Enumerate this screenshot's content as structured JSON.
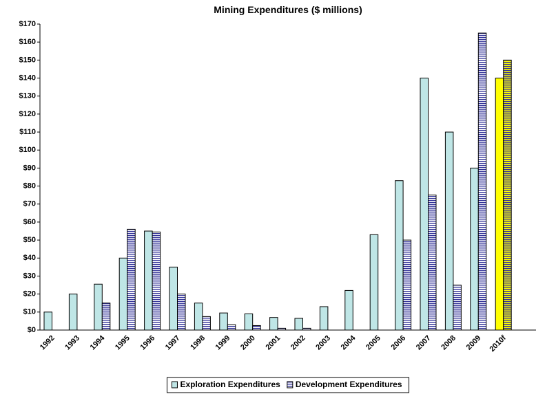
{
  "chart_data": {
    "type": "bar",
    "title": "Mining Expenditures ($ millions)",
    "categories": [
      "1992",
      "1993",
      "1994",
      "1995",
      "1996",
      "1997",
      "1998",
      "1999",
      "2000",
      "2001",
      "2002",
      "2003",
      "2004",
      "2005",
      "2006",
      "2007",
      "2008",
      "2009",
      "2010f"
    ],
    "series": [
      {
        "name": "Exploration Expenditures",
        "color": "#bfe6e6",
        "colors": [
          "#bfe6e6",
          "#bfe6e6",
          "#bfe6e6",
          "#bfe6e6",
          "#bfe6e6",
          "#bfe6e6",
          "#bfe6e6",
          "#bfe6e6",
          "#bfe6e6",
          "#bfe6e6",
          "#bfe6e6",
          "#bfe6e6",
          "#bfe6e6",
          "#bfe6e6",
          "#bfe6e6",
          "#bfe6e6",
          "#bfe6e6",
          "#bfe6e6",
          "#ffff00"
        ],
        "values": [
          10,
          20,
          25.5,
          40,
          55,
          35,
          15,
          9.5,
          9,
          7,
          6.5,
          13,
          22,
          53,
          83,
          140,
          110,
          90,
          140
        ]
      },
      {
        "name": "Development Expenditures",
        "color": "#ffffff",
        "pattern": "horizontal-stripes",
        "stripe_color": "#333399",
        "colors": [
          "#ffffff",
          "#ffffff",
          "#ffffff",
          "#ffffff",
          "#ffffff",
          "#ffffff",
          "#ffffff",
          "#ffffff",
          "#ffffff",
          "#ffffff",
          "#ffffff",
          "#ffffff",
          "#ffffff",
          "#ffffff",
          "#ffffff",
          "#ffffff",
          "#ffffff",
          "#ffffff",
          "#ffff00"
        ],
        "values": [
          null,
          null,
          15,
          56,
          54.5,
          20,
          7.5,
          3,
          2.5,
          1,
          1,
          null,
          null,
          null,
          50,
          75,
          25,
          165,
          150
        ]
      }
    ],
    "ylim": [
      0,
      170
    ],
    "yticks": [
      {
        "value": 0,
        "label": "$0"
      },
      {
        "value": 10,
        "label": "$10"
      },
      {
        "value": 20,
        "label": "$20"
      },
      {
        "value": 30,
        "label": "$30"
      },
      {
        "value": 40,
        "label": "$40"
      },
      {
        "value": 50,
        "label": "$50"
      },
      {
        "value": 60,
        "label": "$60"
      },
      {
        "value": 70,
        "label": "$70"
      },
      {
        "value": 80,
        "label": "$80"
      },
      {
        "value": 90,
        "label": "$90"
      },
      {
        "value": 100,
        "label": "$100"
      },
      {
        "value": 110,
        "label": "$110"
      },
      {
        "value": 120,
        "label": "$120"
      },
      {
        "value": 130,
        "label": "$130"
      },
      {
        "value": 140,
        "label": "$140"
      },
      {
        "value": 150,
        "label": "$150"
      },
      {
        "value": 160,
        "label": "$160"
      },
      {
        "value": 170,
        "label": "$170"
      }
    ],
    "grid": false,
    "legend": "bottom"
  }
}
